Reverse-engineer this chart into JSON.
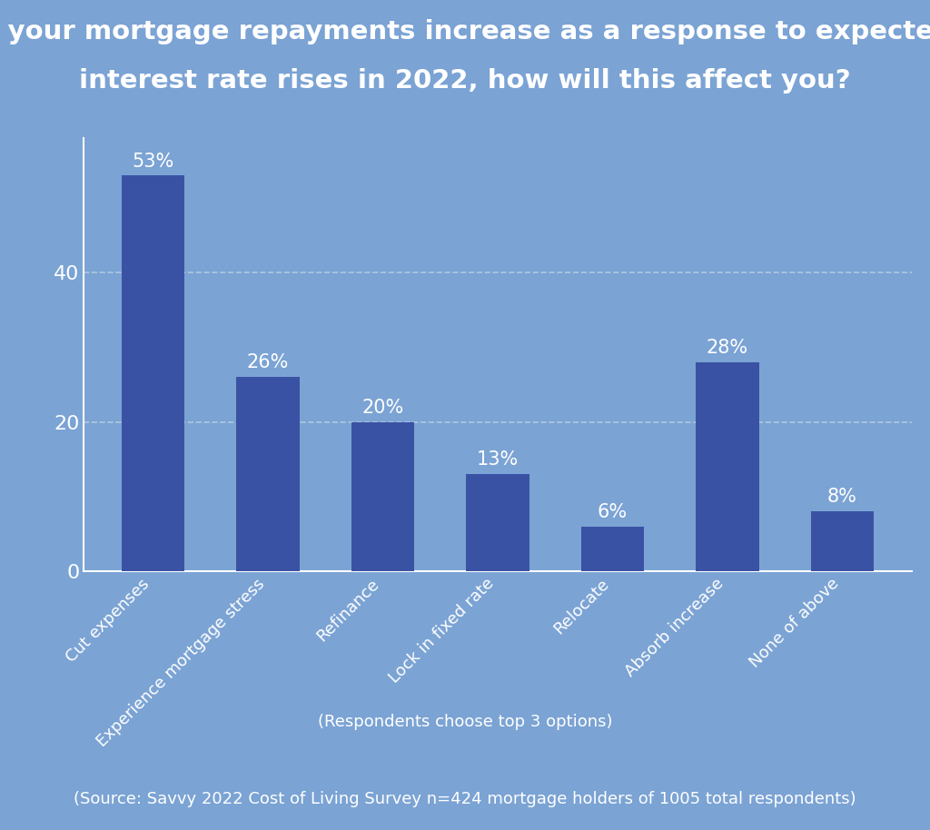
{
  "title_line1": "If your mortgage repayments increase as a response to expected",
  "title_line2": "interest rate rises in 2022, how will this affect you?",
  "categories": [
    "Cut expenses",
    "Experience mortgage stress",
    "Refinance",
    "Lock in fixed rate",
    "Relocate",
    "Absorb increase",
    "None of above"
  ],
  "values": [
    53,
    26,
    20,
    13,
    6,
    28,
    8
  ],
  "bar_color": "#3a52a4",
  "bg_color_title": "#3a52a4",
  "bg_color_chart": "#7ba3d4",
  "bg_color_footer": "#3a52a4",
  "text_color": "#ffffff",
  "ylabel_ticks": [
    0,
    20,
    40
  ],
  "ylim": [
    0,
    58
  ],
  "subtitle": "(Respondents choose top 3 options)",
  "footer": "(Source: Savvy 2022 Cost of Living Survey n=424 mortgage holders of 1005 total respondents)",
  "grid_color": "#b0c8e0",
  "title_fontsize": 21,
  "tick_fontsize": 16,
  "bar_label_fontsize": 15,
  "category_fontsize": 13,
  "subtitle_fontsize": 13,
  "footer_fontsize": 13
}
